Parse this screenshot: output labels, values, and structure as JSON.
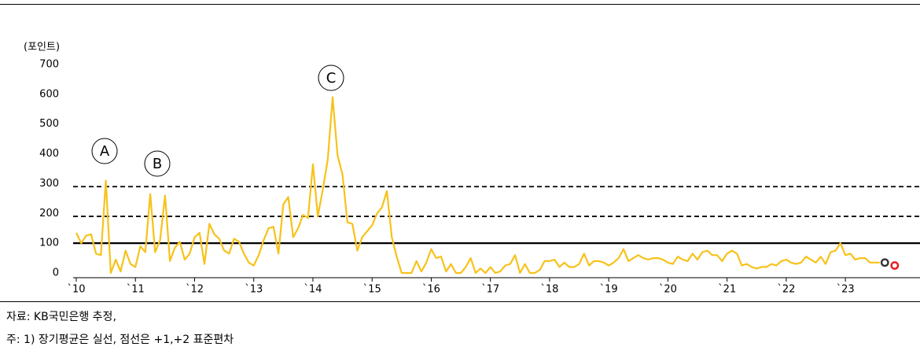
{
  "chart_data": {
    "type": "line",
    "y_unit": "(포인트)",
    "categories": [
      "`10",
      null,
      null,
      null,
      null,
      null,
      null,
      null,
      null,
      null,
      null,
      null,
      "`11",
      null,
      null,
      null,
      null,
      null,
      null,
      null,
      null,
      null,
      null,
      null,
      "`12",
      null,
      null,
      null,
      null,
      null,
      null,
      null,
      null,
      null,
      null,
      null,
      "`13",
      null,
      null,
      null,
      null,
      null,
      null,
      null,
      null,
      null,
      null,
      null,
      "`14",
      null,
      null,
      null,
      null,
      null,
      null,
      null,
      null,
      null,
      null,
      null,
      "`15",
      null,
      null,
      null,
      null,
      null,
      null,
      null,
      null,
      null,
      null,
      null,
      "`16",
      null,
      null,
      null,
      null,
      null,
      null,
      null,
      null,
      null,
      null,
      null,
      "`17",
      null,
      null,
      null,
      null,
      null,
      null,
      null,
      null,
      null,
      null,
      null,
      "`18",
      null,
      null,
      null,
      null,
      null,
      null,
      null,
      null,
      null,
      null,
      null,
      "`19",
      null,
      null,
      null,
      null,
      null,
      null,
      null,
      null,
      null,
      null,
      null,
      "`20",
      null,
      null,
      null,
      null,
      null,
      null,
      null,
      null,
      null,
      null,
      null,
      "`21",
      null,
      null,
      null,
      null,
      null,
      null,
      null,
      null,
      null,
      null,
      null,
      "`22",
      null,
      null,
      null,
      null,
      null,
      null,
      null,
      null,
      null,
      null,
      null,
      "`23",
      null,
      null,
      null,
      null,
      null,
      null,
      null,
      null,
      null,
      null
    ],
    "series": [
      {
        "color": "#f7c21a",
        "values": [
          135,
          100,
          125,
          130,
          65,
          60,
          310,
          0,
          45,
          5,
          75,
          30,
          20,
          90,
          70,
          265,
          70,
          110,
          260,
          40,
          85,
          105,
          45,
          65,
          120,
          135,
          30,
          165,
          130,
          115,
          75,
          65,
          115,
          105,
          65,
          35,
          25,
          60,
          110,
          150,
          155,
          65,
          230,
          255,
          120,
          150,
          195,
          185,
          365,
          190,
          280,
          380,
          590,
          395,
          330,
          170,
          165,
          75,
          120,
          140,
          160,
          200,
          220,
          275,
          120,
          55,
          0,
          0,
          0,
          40,
          5,
          35,
          80,
          50,
          55,
          5,
          30,
          0,
          0,
          20,
          50,
          0,
          15,
          0,
          20,
          0,
          5,
          25,
          30,
          60,
          0,
          30,
          0,
          0,
          10,
          40,
          40,
          45,
          20,
          35,
          20,
          20,
          30,
          65,
          25,
          40,
          40,
          35,
          25,
          35,
          50,
          80,
          40,
          50,
          60,
          50,
          45,
          50,
          50,
          45,
          35,
          30,
          55,
          45,
          40,
          65,
          45,
          70,
          75,
          60,
          60,
          40,
          65,
          75,
          65,
          25,
          30,
          20,
          15,
          20,
          20,
          30,
          25,
          40,
          45,
          35,
          30,
          35,
          55,
          45,
          35,
          55,
          30,
          70,
          75,
          100,
          60,
          65,
          45,
          50,
          50,
          35,
          35,
          35,
          null,
          null,
          null
        ]
      }
    ],
    "markers": [
      {
        "index": 164,
        "value": 35,
        "color": "#333333"
      },
      {
        "index": 166,
        "value": 25,
        "color": "#e8191e"
      }
    ],
    "reference_lines": [
      {
        "value": 100,
        "style": "solid"
      },
      {
        "value": 190,
        "style": "dashed"
      },
      {
        "value": 290,
        "style": "dashed"
      }
    ],
    "annotations": [
      "A",
      "B",
      "C"
    ],
    "ylim": [
      0,
      700
    ],
    "yticks": [
      0,
      100,
      200,
      300,
      400,
      500,
      600,
      700
    ],
    "notes": [
      "자료: KB국민은행 추정,",
      "주: 1) 장기평균은 실선, 점선은 +1,+2 표준편차"
    ]
  }
}
